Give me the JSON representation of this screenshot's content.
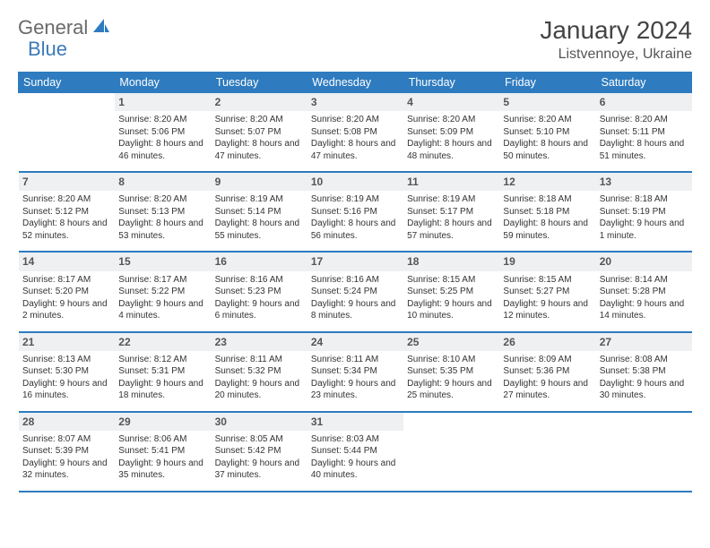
{
  "logo": {
    "part1": "General",
    "part2": "Blue"
  },
  "title": "January 2024",
  "location": "Listvennoye, Ukraine",
  "colors": {
    "header_bar": "#2e7bbf",
    "row_divider": "#2e7bbf",
    "daynum_band": "#eef0f2",
    "logo_gray": "#6a6a6a",
    "logo_blue": "#3a7ab8",
    "text": "#333333",
    "background": "#ffffff"
  },
  "typography": {
    "title_fontsize": 28,
    "location_fontsize": 16,
    "weekday_fontsize": 12.5,
    "body_fontsize": 10,
    "daynum_fontsize": 12
  },
  "weekdays": [
    "Sunday",
    "Monday",
    "Tuesday",
    "Wednesday",
    "Thursday",
    "Friday",
    "Saturday"
  ],
  "first_weekday_index": 1,
  "days": [
    {
      "n": 1,
      "sunrise": "8:20 AM",
      "sunset": "5:06 PM",
      "daylight": "8 hours and 46 minutes."
    },
    {
      "n": 2,
      "sunrise": "8:20 AM",
      "sunset": "5:07 PM",
      "daylight": "8 hours and 47 minutes."
    },
    {
      "n": 3,
      "sunrise": "8:20 AM",
      "sunset": "5:08 PM",
      "daylight": "8 hours and 47 minutes."
    },
    {
      "n": 4,
      "sunrise": "8:20 AM",
      "sunset": "5:09 PM",
      "daylight": "8 hours and 48 minutes."
    },
    {
      "n": 5,
      "sunrise": "8:20 AM",
      "sunset": "5:10 PM",
      "daylight": "8 hours and 50 minutes."
    },
    {
      "n": 6,
      "sunrise": "8:20 AM",
      "sunset": "5:11 PM",
      "daylight": "8 hours and 51 minutes."
    },
    {
      "n": 7,
      "sunrise": "8:20 AM",
      "sunset": "5:12 PM",
      "daylight": "8 hours and 52 minutes."
    },
    {
      "n": 8,
      "sunrise": "8:20 AM",
      "sunset": "5:13 PM",
      "daylight": "8 hours and 53 minutes."
    },
    {
      "n": 9,
      "sunrise": "8:19 AM",
      "sunset": "5:14 PM",
      "daylight": "8 hours and 55 minutes."
    },
    {
      "n": 10,
      "sunrise": "8:19 AM",
      "sunset": "5:16 PM",
      "daylight": "8 hours and 56 minutes."
    },
    {
      "n": 11,
      "sunrise": "8:19 AM",
      "sunset": "5:17 PM",
      "daylight": "8 hours and 57 minutes."
    },
    {
      "n": 12,
      "sunrise": "8:18 AM",
      "sunset": "5:18 PM",
      "daylight": "8 hours and 59 minutes."
    },
    {
      "n": 13,
      "sunrise": "8:18 AM",
      "sunset": "5:19 PM",
      "daylight": "9 hours and 1 minute."
    },
    {
      "n": 14,
      "sunrise": "8:17 AM",
      "sunset": "5:20 PM",
      "daylight": "9 hours and 2 minutes."
    },
    {
      "n": 15,
      "sunrise": "8:17 AM",
      "sunset": "5:22 PM",
      "daylight": "9 hours and 4 minutes."
    },
    {
      "n": 16,
      "sunrise": "8:16 AM",
      "sunset": "5:23 PM",
      "daylight": "9 hours and 6 minutes."
    },
    {
      "n": 17,
      "sunrise": "8:16 AM",
      "sunset": "5:24 PM",
      "daylight": "9 hours and 8 minutes."
    },
    {
      "n": 18,
      "sunrise": "8:15 AM",
      "sunset": "5:25 PM",
      "daylight": "9 hours and 10 minutes."
    },
    {
      "n": 19,
      "sunrise": "8:15 AM",
      "sunset": "5:27 PM",
      "daylight": "9 hours and 12 minutes."
    },
    {
      "n": 20,
      "sunrise": "8:14 AM",
      "sunset": "5:28 PM",
      "daylight": "9 hours and 14 minutes."
    },
    {
      "n": 21,
      "sunrise": "8:13 AM",
      "sunset": "5:30 PM",
      "daylight": "9 hours and 16 minutes."
    },
    {
      "n": 22,
      "sunrise": "8:12 AM",
      "sunset": "5:31 PM",
      "daylight": "9 hours and 18 minutes."
    },
    {
      "n": 23,
      "sunrise": "8:11 AM",
      "sunset": "5:32 PM",
      "daylight": "9 hours and 20 minutes."
    },
    {
      "n": 24,
      "sunrise": "8:11 AM",
      "sunset": "5:34 PM",
      "daylight": "9 hours and 23 minutes."
    },
    {
      "n": 25,
      "sunrise": "8:10 AM",
      "sunset": "5:35 PM",
      "daylight": "9 hours and 25 minutes."
    },
    {
      "n": 26,
      "sunrise": "8:09 AM",
      "sunset": "5:36 PM",
      "daylight": "9 hours and 27 minutes."
    },
    {
      "n": 27,
      "sunrise": "8:08 AM",
      "sunset": "5:38 PM",
      "daylight": "9 hours and 30 minutes."
    },
    {
      "n": 28,
      "sunrise": "8:07 AM",
      "sunset": "5:39 PM",
      "daylight": "9 hours and 32 minutes."
    },
    {
      "n": 29,
      "sunrise": "8:06 AM",
      "sunset": "5:41 PM",
      "daylight": "9 hours and 35 minutes."
    },
    {
      "n": 30,
      "sunrise": "8:05 AM",
      "sunset": "5:42 PM",
      "daylight": "9 hours and 37 minutes."
    },
    {
      "n": 31,
      "sunrise": "8:03 AM",
      "sunset": "5:44 PM",
      "daylight": "9 hours and 40 minutes."
    }
  ],
  "labels": {
    "sunrise": "Sunrise:",
    "sunset": "Sunset:",
    "daylight": "Daylight:"
  }
}
